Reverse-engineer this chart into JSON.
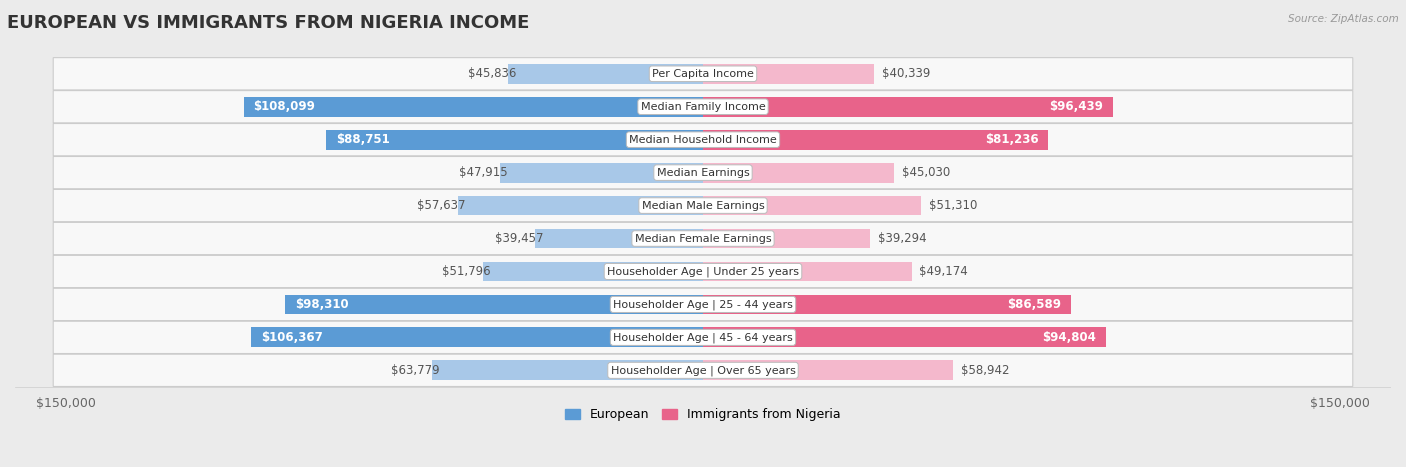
{
  "title": "EUROPEAN VS IMMIGRANTS FROM NIGERIA INCOME",
  "source": "Source: ZipAtlas.com",
  "categories": [
    "Per Capita Income",
    "Median Family Income",
    "Median Household Income",
    "Median Earnings",
    "Median Male Earnings",
    "Median Female Earnings",
    "Householder Age | Under 25 years",
    "Householder Age | 25 - 44 years",
    "Householder Age | 45 - 64 years",
    "Householder Age | Over 65 years"
  ],
  "european_values": [
    45836,
    108099,
    88751,
    47915,
    57637,
    39457,
    51796,
    98310,
    106367,
    63779
  ],
  "nigeria_values": [
    40339,
    96439,
    81236,
    45030,
    51310,
    39294,
    49174,
    86589,
    94804,
    58942
  ],
  "european_labels": [
    "$45,836",
    "$108,099",
    "$88,751",
    "$47,915",
    "$57,637",
    "$39,457",
    "$51,796",
    "$98,310",
    "$106,367",
    "$63,779"
  ],
  "nigeria_labels": [
    "$40,339",
    "$96,439",
    "$81,236",
    "$45,030",
    "$51,310",
    "$39,294",
    "$49,174",
    "$86,589",
    "$94,804",
    "$58,942"
  ],
  "max_value": 150000,
  "european_color_light": "#A8C8E8",
  "nigeria_color_light": "#F4B8CC",
  "european_color_dark": "#5B9BD5",
  "nigeria_color_dark": "#E8638A",
  "bg_color": "#ebebeb",
  "row_bg": "#f5f5f5",
  "bar_height": 0.6,
  "label_threshold": 65000,
  "title_fontsize": 13,
  "label_fontsize": 8.5,
  "axis_fontsize": 9
}
